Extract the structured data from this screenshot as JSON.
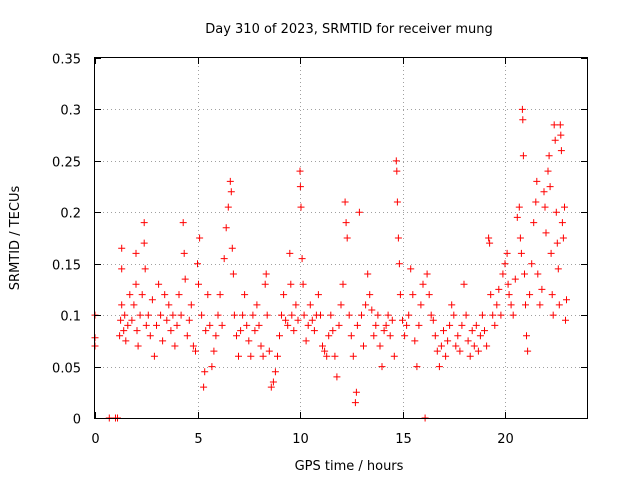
{
  "chart_data": {
    "type": "scatter",
    "title": "Day 310 of 2023, SRMTID for receiver mung",
    "xlabel": "GPS time / hours",
    "ylabel": "SRMTID / TECUs",
    "xlim": [
      0,
      24
    ],
    "ylim": [
      0,
      0.35
    ],
    "xticks": [
      0,
      5,
      10,
      15,
      20
    ],
    "xtick_labels": [
      "0",
      "5",
      "10",
      "15",
      "20"
    ],
    "yticks": [
      0,
      0.05,
      0.1,
      0.15,
      0.2,
      0.25,
      0.3,
      0.35
    ],
    "ytick_labels": [
      "0",
      "0.05",
      "0.1",
      "0.15",
      "0.2",
      "0.25",
      "0.3",
      "0.35"
    ],
    "grid": true,
    "marker": "plus",
    "color": "#ff0000",
    "series": [
      {
        "name": "SRMTID",
        "points": [
          [
            0.0,
            0.1
          ],
          [
            0.0,
            0.078
          ],
          [
            0.0,
            0.07
          ],
          [
            0.7,
            0.0
          ],
          [
            1.0,
            0.0
          ],
          [
            1.1,
            0.0
          ],
          [
            1.2,
            0.08
          ],
          [
            1.25,
            0.095
          ],
          [
            1.3,
            0.11
          ],
          [
            1.3,
            0.145
          ],
          [
            1.3,
            0.165
          ],
          [
            1.4,
            0.085
          ],
          [
            1.45,
            0.1
          ],
          [
            1.5,
            0.075
          ],
          [
            1.6,
            0.09
          ],
          [
            1.7,
            0.12
          ],
          [
            1.8,
            0.095
          ],
          [
            1.9,
            0.11
          ],
          [
            2.0,
            0.16
          ],
          [
            2.0,
            0.13
          ],
          [
            2.05,
            0.085
          ],
          [
            2.1,
            0.07
          ],
          [
            2.2,
            0.1
          ],
          [
            2.3,
            0.12
          ],
          [
            2.4,
            0.19
          ],
          [
            2.4,
            0.17
          ],
          [
            2.45,
            0.145
          ],
          [
            2.5,
            0.09
          ],
          [
            2.6,
            0.1
          ],
          [
            2.7,
            0.08
          ],
          [
            2.8,
            0.115
          ],
          [
            2.9,
            0.06
          ],
          [
            3.0,
            0.09
          ],
          [
            3.1,
            0.13
          ],
          [
            3.2,
            0.1
          ],
          [
            3.3,
            0.075
          ],
          [
            3.4,
            0.12
          ],
          [
            3.5,
            0.095
          ],
          [
            3.6,
            0.11
          ],
          [
            3.7,
            0.085
          ],
          [
            3.8,
            0.1
          ],
          [
            3.9,
            0.07
          ],
          [
            4.0,
            0.09
          ],
          [
            4.1,
            0.12
          ],
          [
            4.2,
            0.1
          ],
          [
            4.3,
            0.19
          ],
          [
            4.35,
            0.16
          ],
          [
            4.4,
            0.135
          ],
          [
            4.5,
            0.08
          ],
          [
            4.6,
            0.095
          ],
          [
            4.7,
            0.11
          ],
          [
            4.8,
            0.07
          ],
          [
            4.9,
            0.065
          ],
          [
            5.0,
            0.15
          ],
          [
            5.05,
            0.13
          ],
          [
            5.1,
            0.175
          ],
          [
            5.2,
            0.1
          ],
          [
            5.3,
            0.03
          ],
          [
            5.35,
            0.045
          ],
          [
            5.4,
            0.085
          ],
          [
            5.5,
            0.12
          ],
          [
            5.6,
            0.09
          ],
          [
            5.7,
            0.05
          ],
          [
            5.8,
            0.065
          ],
          [
            5.9,
            0.08
          ],
          [
            6.0,
            0.1
          ],
          [
            6.1,
            0.12
          ],
          [
            6.2,
            0.09
          ],
          [
            6.3,
            0.155
          ],
          [
            6.4,
            0.185
          ],
          [
            6.5,
            0.205
          ],
          [
            6.6,
            0.23
          ],
          [
            6.65,
            0.22
          ],
          [
            6.7,
            0.165
          ],
          [
            6.75,
            0.14
          ],
          [
            6.8,
            0.1
          ],
          [
            6.9,
            0.08
          ],
          [
            7.0,
            0.06
          ],
          [
            7.1,
            0.085
          ],
          [
            7.2,
            0.1
          ],
          [
            7.3,
            0.12
          ],
          [
            7.4,
            0.09
          ],
          [
            7.5,
            0.075
          ],
          [
            7.6,
            0.06
          ],
          [
            7.7,
            0.1
          ],
          [
            7.8,
            0.085
          ],
          [
            7.9,
            0.11
          ],
          [
            8.0,
            0.09
          ],
          [
            8.1,
            0.07
          ],
          [
            8.2,
            0.06
          ],
          [
            8.3,
            0.13
          ],
          [
            8.35,
            0.14
          ],
          [
            8.4,
            0.1
          ],
          [
            8.5,
            0.065
          ],
          [
            8.6,
            0.03
          ],
          [
            8.7,
            0.035
          ],
          [
            8.8,
            0.045
          ],
          [
            8.9,
            0.06
          ],
          [
            9.0,
            0.08
          ],
          [
            9.1,
            0.1
          ],
          [
            9.2,
            0.12
          ],
          [
            9.3,
            0.095
          ],
          [
            9.4,
            0.09
          ],
          [
            9.5,
            0.16
          ],
          [
            9.55,
            0.13
          ],
          [
            9.6,
            0.1
          ],
          [
            9.7,
            0.085
          ],
          [
            9.8,
            0.11
          ],
          [
            9.9,
            0.095
          ],
          [
            10.0,
            0.24
          ],
          [
            10.02,
            0.225
          ],
          [
            10.05,
            0.205
          ],
          [
            10.1,
            0.155
          ],
          [
            10.15,
            0.13
          ],
          [
            10.2,
            0.1
          ],
          [
            10.3,
            0.075
          ],
          [
            10.4,
            0.09
          ],
          [
            10.5,
            0.11
          ],
          [
            10.6,
            0.095
          ],
          [
            10.7,
            0.085
          ],
          [
            10.8,
            0.1
          ],
          [
            10.9,
            0.12
          ],
          [
            11.0,
            0.1
          ],
          [
            11.1,
            0.07
          ],
          [
            11.2,
            0.065
          ],
          [
            11.3,
            0.06
          ],
          [
            11.4,
            0.08
          ],
          [
            11.5,
            0.1
          ],
          [
            11.6,
            0.085
          ],
          [
            11.7,
            0.06
          ],
          [
            11.8,
            0.04
          ],
          [
            11.9,
            0.09
          ],
          [
            12.0,
            0.11
          ],
          [
            12.1,
            0.13
          ],
          [
            12.2,
            0.21
          ],
          [
            12.25,
            0.19
          ],
          [
            12.3,
            0.175
          ],
          [
            12.4,
            0.1
          ],
          [
            12.5,
            0.08
          ],
          [
            12.6,
            0.06
          ],
          [
            12.7,
            0.015
          ],
          [
            12.75,
            0.025
          ],
          [
            12.8,
            0.09
          ],
          [
            12.9,
            0.2
          ],
          [
            13.0,
            0.1
          ],
          [
            13.1,
            0.07
          ],
          [
            13.2,
            0.11
          ],
          [
            13.3,
            0.14
          ],
          [
            13.4,
            0.12
          ],
          [
            13.5,
            0.105
          ],
          [
            13.6,
            0.08
          ],
          [
            13.7,
            0.09
          ],
          [
            13.8,
            0.1
          ],
          [
            13.9,
            0.07
          ],
          [
            14.0,
            0.05
          ],
          [
            14.1,
            0.085
          ],
          [
            14.2,
            0.09
          ],
          [
            14.3,
            0.1
          ],
          [
            14.4,
            0.08
          ],
          [
            14.5,
            0.095
          ],
          [
            14.6,
            0.06
          ],
          [
            14.7,
            0.25
          ],
          [
            14.72,
            0.24
          ],
          [
            14.75,
            0.21
          ],
          [
            14.8,
            0.175
          ],
          [
            14.85,
            0.15
          ],
          [
            14.9,
            0.12
          ],
          [
            15.0,
            0.095
          ],
          [
            15.1,
            0.08
          ],
          [
            15.2,
            0.09
          ],
          [
            15.3,
            0.1
          ],
          [
            15.4,
            0.145
          ],
          [
            15.5,
            0.12
          ],
          [
            15.6,
            0.075
          ],
          [
            15.7,
            0.05
          ],
          [
            15.8,
            0.09
          ],
          [
            15.9,
            0.11
          ],
          [
            16.0,
            0.13
          ],
          [
            16.1,
            0.0
          ],
          [
            16.2,
            0.14
          ],
          [
            16.3,
            0.12
          ],
          [
            16.4,
            0.1
          ],
          [
            16.5,
            0.095
          ],
          [
            16.6,
            0.08
          ],
          [
            16.7,
            0.065
          ],
          [
            16.8,
            0.05
          ],
          [
            16.9,
            0.07
          ],
          [
            17.0,
            0.085
          ],
          [
            17.1,
            0.06
          ],
          [
            17.2,
            0.075
          ],
          [
            17.3,
            0.09
          ],
          [
            17.4,
            0.11
          ],
          [
            17.5,
            0.1
          ],
          [
            17.6,
            0.07
          ],
          [
            17.7,
            0.08
          ],
          [
            17.8,
            0.065
          ],
          [
            17.9,
            0.09
          ],
          [
            18.0,
            0.13
          ],
          [
            18.1,
            0.1
          ],
          [
            18.2,
            0.075
          ],
          [
            18.3,
            0.06
          ],
          [
            18.4,
            0.085
          ],
          [
            18.5,
            0.07
          ],
          [
            18.6,
            0.09
          ],
          [
            18.7,
            0.065
          ],
          [
            18.8,
            0.08
          ],
          [
            18.9,
            0.1
          ],
          [
            19.0,
            0.085
          ],
          [
            19.1,
            0.07
          ],
          [
            19.2,
            0.175
          ],
          [
            19.25,
            0.17
          ],
          [
            19.3,
            0.12
          ],
          [
            19.4,
            0.1
          ],
          [
            19.5,
            0.09
          ],
          [
            19.6,
            0.11
          ],
          [
            19.7,
            0.125
          ],
          [
            19.8,
            0.1
          ],
          [
            19.9,
            0.14
          ],
          [
            20.0,
            0.15
          ],
          [
            20.1,
            0.16
          ],
          [
            20.15,
            0.13
          ],
          [
            20.2,
            0.12
          ],
          [
            20.3,
            0.11
          ],
          [
            20.4,
            0.1
          ],
          [
            20.5,
            0.135
          ],
          [
            20.6,
            0.195
          ],
          [
            20.7,
            0.205
          ],
          [
            20.75,
            0.175
          ],
          [
            20.8,
            0.16
          ],
          [
            20.85,
            0.3
          ],
          [
            20.87,
            0.29
          ],
          [
            20.9,
            0.255
          ],
          [
            20.95,
            0.14
          ],
          [
            21.0,
            0.11
          ],
          [
            21.05,
            0.08
          ],
          [
            21.1,
            0.065
          ],
          [
            21.2,
            0.12
          ],
          [
            21.3,
            0.15
          ],
          [
            21.4,
            0.19
          ],
          [
            21.5,
            0.21
          ],
          [
            21.55,
            0.23
          ],
          [
            21.6,
            0.14
          ],
          [
            21.7,
            0.11
          ],
          [
            21.8,
            0.125
          ],
          [
            21.9,
            0.22
          ],
          [
            21.95,
            0.205
          ],
          [
            22.0,
            0.18
          ],
          [
            22.1,
            0.24
          ],
          [
            22.15,
            0.255
          ],
          [
            22.2,
            0.225
          ],
          [
            22.25,
            0.16
          ],
          [
            22.3,
            0.12
          ],
          [
            22.35,
            0.1
          ],
          [
            22.4,
            0.285
          ],
          [
            22.45,
            0.27
          ],
          [
            22.5,
            0.2
          ],
          [
            22.55,
            0.17
          ],
          [
            22.6,
            0.145
          ],
          [
            22.65,
            0.11
          ],
          [
            22.7,
            0.285
          ],
          [
            22.72,
            0.275
          ],
          [
            22.75,
            0.26
          ],
          [
            22.8,
            0.19
          ],
          [
            22.85,
            0.175
          ],
          [
            22.9,
            0.205
          ],
          [
            22.95,
            0.095
          ],
          [
            23.0,
            0.115
          ]
        ]
      }
    ]
  }
}
